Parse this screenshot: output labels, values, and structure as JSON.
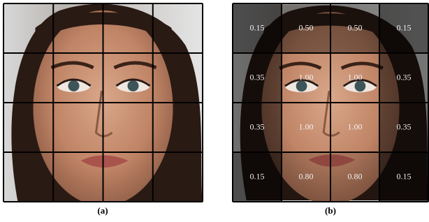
{
  "figure": {
    "panels": [
      {
        "caption": "(a)"
      },
      {
        "caption": "(b)",
        "weights": [
          [
            "0.15",
            "0.50",
            "0.50",
            "0.15"
          ],
          [
            "0.35",
            "1.00",
            "1.00",
            "0.35"
          ],
          [
            "0.35",
            "1.00",
            "1.00",
            "0.35"
          ],
          [
            "0.15",
            "0.80",
            "0.80",
            "0.15"
          ]
        ]
      }
    ]
  }
}
